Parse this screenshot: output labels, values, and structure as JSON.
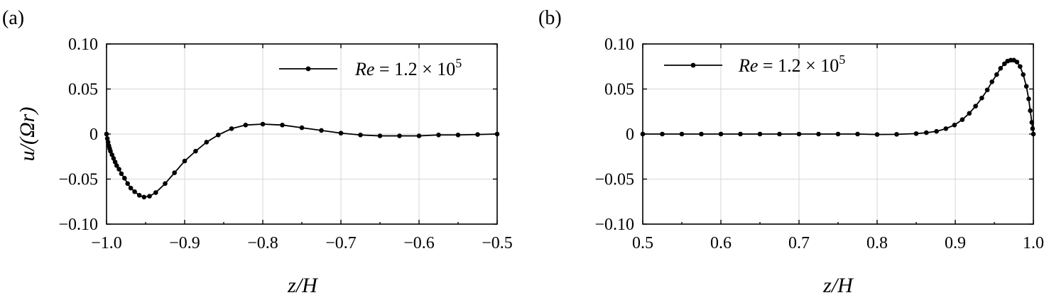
{
  "chart_data": [
    {
      "type": "line",
      "panel_label": "(a)",
      "xlabel_var": "z",
      "xlabel_rest": "/H",
      "ylabel": "u/(Ωr)",
      "xlim": [
        -1.0,
        -0.5
      ],
      "ylim": [
        -0.1,
        0.1
      ],
      "xticks": [
        -1.0,
        -0.9,
        -0.8,
        -0.7,
        -0.6,
        -0.5
      ],
      "xtick_labels": [
        "−1.0",
        "−0.9",
        "−0.8",
        "−0.7",
        "−0.6",
        "−0.5"
      ],
      "yticks": [
        0.1,
        0.05,
        0,
        -0.05,
        -0.1
      ],
      "ytick_labels": [
        "0.10",
        "0.05",
        "0",
        "−0.05",
        "−0.10"
      ],
      "grid": true,
      "legend_position": "top-right",
      "series": [
        {
          "name": "Re = 1.2 × 10^5",
          "legend_re": "Re",
          "legend_eq": " = 1.2 × 10",
          "legend_exp": "5",
          "color": "#000000",
          "marker": "circle",
          "points": [
            [
              -1.0,
              0.0
            ],
            [
              -0.999,
              -0.005
            ],
            [
              -0.998,
              -0.009
            ],
            [
              -0.997,
              -0.013
            ],
            [
              -0.996,
              -0.016
            ],
            [
              -0.995,
              -0.019
            ],
            [
              -0.993,
              -0.023
            ],
            [
              -0.991,
              -0.027
            ],
            [
              -0.989,
              -0.031
            ],
            [
              -0.987,
              -0.035
            ],
            [
              -0.984,
              -0.039
            ],
            [
              -0.981,
              -0.044
            ],
            [
              -0.977,
              -0.049
            ],
            [
              -0.973,
              -0.055
            ],
            [
              -0.969,
              -0.06
            ],
            [
              -0.964,
              -0.064
            ],
            [
              -0.958,
              -0.068
            ],
            [
              -0.952,
              -0.07
            ],
            [
              -0.945,
              -0.069
            ],
            [
              -0.937,
              -0.065
            ],
            [
              -0.925,
              -0.055
            ],
            [
              -0.913,
              -0.043
            ],
            [
              -0.9,
              -0.03
            ],
            [
              -0.886,
              -0.019
            ],
            [
              -0.872,
              -0.009
            ],
            [
              -0.857,
              -0.001
            ],
            [
              -0.84,
              0.006
            ],
            [
              -0.822,
              0.01
            ],
            [
              -0.8,
              0.011
            ],
            [
              -0.775,
              0.01
            ],
            [
              -0.75,
              0.007
            ],
            [
              -0.725,
              0.004
            ],
            [
              -0.7,
              0.001
            ],
            [
              -0.675,
              -0.001
            ],
            [
              -0.65,
              -0.002
            ],
            [
              -0.625,
              -0.002
            ],
            [
              -0.6,
              -0.002
            ],
            [
              -0.575,
              -0.001
            ],
            [
              -0.55,
              -0.001
            ],
            [
              -0.525,
              -0.0005
            ],
            [
              -0.5,
              0.0
            ]
          ]
        }
      ]
    },
    {
      "type": "line",
      "panel_label": "(b)",
      "xlabel_var": "z",
      "xlabel_rest": "/H",
      "ylabel": "",
      "xlim": [
        0.5,
        1.0
      ],
      "ylim": [
        -0.1,
        0.1
      ],
      "xticks": [
        0.5,
        0.6,
        0.7,
        0.8,
        0.9,
        1.0
      ],
      "xtick_labels": [
        "0.5",
        "0.6",
        "0.7",
        "0.8",
        "0.9",
        "1.0"
      ],
      "yticks": [
        0.1,
        0.05,
        0,
        -0.05,
        -0.1
      ],
      "ytick_labels": [
        "0.10",
        "0.05",
        "0",
        "−0.05",
        "−0.10"
      ],
      "grid": true,
      "legend_position": "top-left",
      "series": [
        {
          "name": "Re = 1.2 × 10^5",
          "legend_re": "Re",
          "legend_eq": " = 1.2 × 10",
          "legend_exp": "5",
          "color": "#000000",
          "marker": "circle",
          "points": [
            [
              0.5,
              0.0
            ],
            [
              0.525,
              0.0
            ],
            [
              0.55,
              0.0
            ],
            [
              0.575,
              0.0
            ],
            [
              0.6,
              0.0
            ],
            [
              0.625,
              0.0
            ],
            [
              0.65,
              0.0
            ],
            [
              0.675,
              0.0
            ],
            [
              0.7,
              0.0
            ],
            [
              0.725,
              0.0
            ],
            [
              0.75,
              0.0
            ],
            [
              0.775,
              0.0
            ],
            [
              0.8,
              -0.0005
            ],
            [
              0.825,
              -0.0003
            ],
            [
              0.85,
              0.0005
            ],
            [
              0.863,
              0.0015
            ],
            [
              0.876,
              0.003
            ],
            [
              0.888,
              0.006
            ],
            [
              0.899,
              0.01
            ],
            [
              0.909,
              0.016
            ],
            [
              0.918,
              0.023
            ],
            [
              0.926,
              0.031
            ],
            [
              0.934,
              0.04
            ],
            [
              0.941,
              0.049
            ],
            [
              0.947,
              0.058
            ],
            [
              0.953,
              0.066
            ],
            [
              0.958,
              0.073
            ],
            [
              0.963,
              0.078
            ],
            [
              0.967,
              0.081
            ],
            [
              0.971,
              0.082
            ],
            [
              0.975,
              0.082
            ],
            [
              0.979,
              0.08
            ],
            [
              0.983,
              0.075
            ],
            [
              0.987,
              0.066
            ],
            [
              0.991,
              0.053
            ],
            [
              0.994,
              0.039
            ],
            [
              0.996,
              0.026
            ],
            [
              0.998,
              0.013
            ],
            [
              0.999,
              0.006
            ],
            [
              1.0,
              0.0
            ]
          ]
        }
      ]
    }
  ]
}
